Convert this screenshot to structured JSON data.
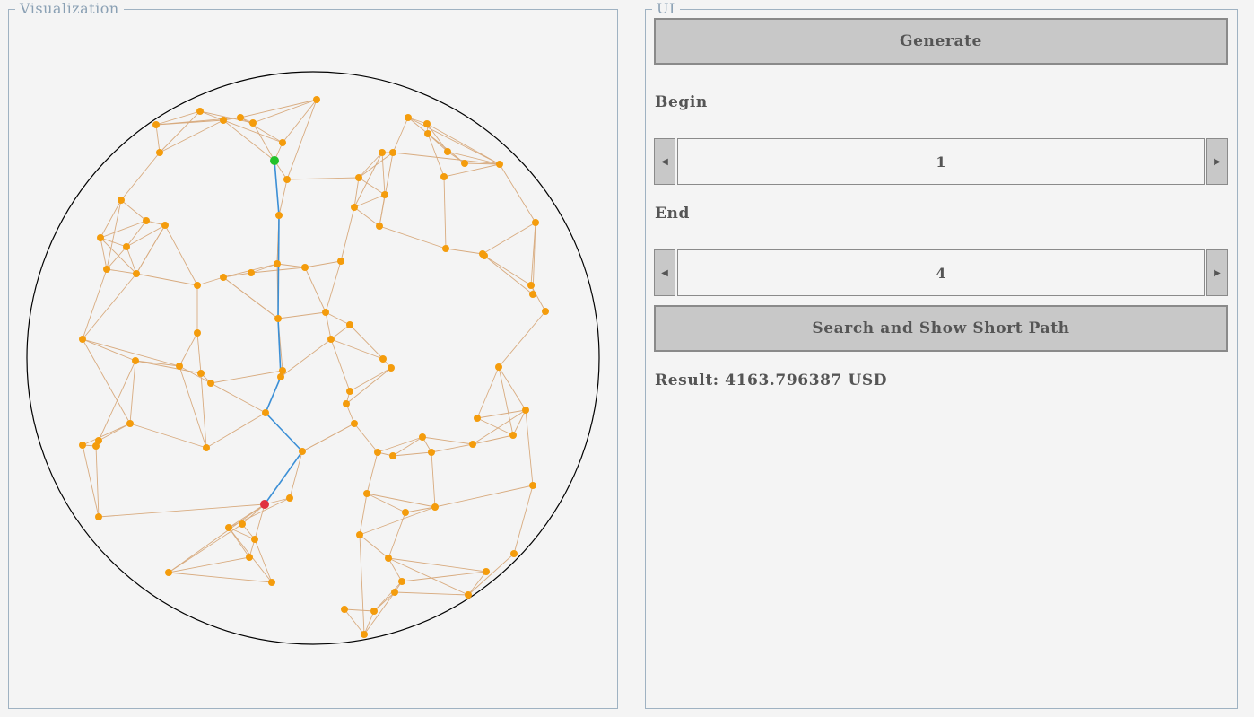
{
  "visualization": {
    "title": "Visualization",
    "colors": {
      "boundary": "#000000",
      "edge": "#d8ab7f",
      "path": "#3b8fd6",
      "node": "#f49c0c",
      "start_node": "#22c22a",
      "end_node": "#e03040"
    }
  },
  "ui": {
    "title": "UI",
    "generate_label": "Generate",
    "begin": {
      "label": "Begin",
      "value": "1",
      "left_icon": "arrow-left-icon",
      "right_icon": "arrow-right-icon"
    },
    "end": {
      "label": "End",
      "value": "4",
      "left_icon": "arrow-left-icon",
      "right_icon": "arrow-right-icon"
    },
    "search_label": "Search and Show Short Path",
    "result_text": "Result: 4163.796387 USD"
  }
}
